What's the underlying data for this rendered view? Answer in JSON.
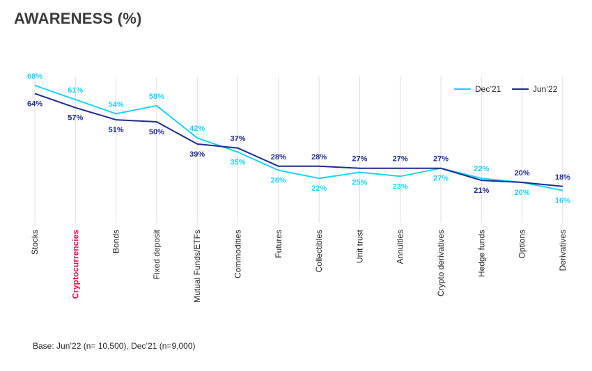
{
  "title": "AWARENESS (%)",
  "footnote": "Base: Jun’22 (n= 10,500), Dec’21 (n=9,000)",
  "colors": {
    "dec21": "#19d3fb",
    "jun22": "#1e2a8f",
    "highlight": "#e8114f",
    "grid": "#dddddd"
  },
  "chart_data": {
    "type": "line",
    "categories": [
      "Stocks",
      "Cryptocurrencies",
      "Bonds",
      "Fixed deposit",
      "Mutual Funds/ETFs",
      "Commodities",
      "Futures",
      "Collectibles",
      "Unit trust",
      "Annuities",
      "Crypto derivatives",
      "Hedge funds",
      "Options",
      "Derivatives"
    ],
    "highlight_category": "Cryptocurrencies",
    "series": [
      {
        "name": "Dec’21",
        "color": "#19d3fb",
        "values": [
          68,
          61,
          54,
          58,
          42,
          35,
          26,
          22,
          25,
          23,
          27,
          22,
          20,
          16
        ],
        "labels": [
          "68%",
          "61%",
          "54%",
          "58%",
          "42%",
          "35%",
          "26%",
          "22%",
          "25%",
          "23%",
          "27%",
          "22%",
          "20%",
          "16%"
        ]
      },
      {
        "name": "Jun’22",
        "color": "#1e2a8f",
        "values": [
          64,
          57,
          51,
          50,
          39,
          37,
          28,
          28,
          27,
          27,
          27,
          21,
          20,
          18
        ],
        "labels": [
          "64%",
          "57%",
          "51%",
          "50%",
          "39%",
          "37%",
          "28%",
          "28%",
          "27%",
          "27%",
          "27%",
          "21%",
          "20%",
          "18%"
        ]
      }
    ],
    "ylim": [
      0,
      80
    ],
    "legend": "top-right",
    "grid": "vertical"
  }
}
